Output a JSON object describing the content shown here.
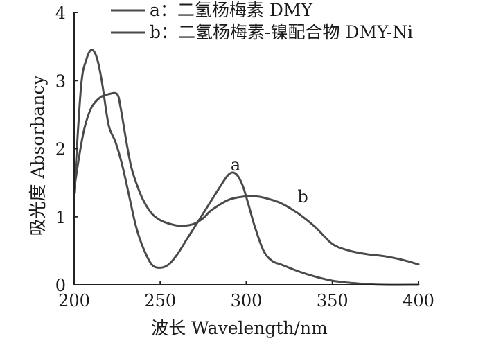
{
  "chart_data": {
    "type": "line",
    "xlabel": "波长 Wavelength/nm",
    "ylabel": "吸光度 Absorbancy",
    "xlim": [
      200,
      400
    ],
    "ylim": [
      0,
      4
    ],
    "xticks": [
      "200",
      "250",
      "300",
      "350",
      "400"
    ],
    "yticks": [
      "0",
      "1",
      "2",
      "3",
      "4"
    ],
    "grid": false,
    "legend_position": "top",
    "line_color": "#4a4a4a",
    "series": [
      {
        "id": "a",
        "name": "a：二氢杨梅素 DMY",
        "curve_label": "a",
        "x": [
          200,
          204,
          207,
          210,
          213,
          216,
          220,
          224,
          228,
          232,
          236,
          240,
          245,
          250,
          255,
          260,
          265,
          270,
          275,
          280,
          285,
          289,
          292,
          295,
          298,
          301,
          305,
          310,
          315,
          320,
          330,
          340,
          350,
          360,
          370,
          380,
          400
        ],
        "y": [
          1.35,
          2.9,
          3.3,
          3.45,
          3.35,
          3.0,
          2.35,
          2.1,
          1.75,
          1.3,
          0.85,
          0.55,
          0.3,
          0.25,
          0.3,
          0.45,
          0.65,
          0.85,
          1.05,
          1.25,
          1.45,
          1.6,
          1.65,
          1.6,
          1.45,
          1.2,
          0.85,
          0.5,
          0.35,
          0.3,
          0.2,
          0.12,
          0.06,
          0.03,
          0.01,
          0.0,
          0.0
        ]
      },
      {
        "id": "b",
        "name": "b：二氢杨梅素-镍配合物 DMY-Ni",
        "curve_label": "b",
        "x": [
          200,
          203,
          206,
          210,
          215,
          220,
          225,
          227,
          230,
          233,
          236,
          240,
          245,
          250,
          255,
          260,
          265,
          270,
          275,
          280,
          290,
          300,
          305,
          310,
          320,
          330,
          340,
          350,
          360,
          370,
          380,
          390,
          400
        ],
        "y": [
          1.4,
          1.9,
          2.3,
          2.6,
          2.75,
          2.8,
          2.8,
          2.6,
          2.15,
          1.75,
          1.5,
          1.25,
          1.05,
          0.95,
          0.9,
          0.87,
          0.87,
          0.9,
          0.98,
          1.1,
          1.25,
          1.3,
          1.3,
          1.28,
          1.2,
          1.05,
          0.85,
          0.6,
          0.5,
          0.45,
          0.42,
          0.37,
          0.3
        ]
      }
    ]
  }
}
